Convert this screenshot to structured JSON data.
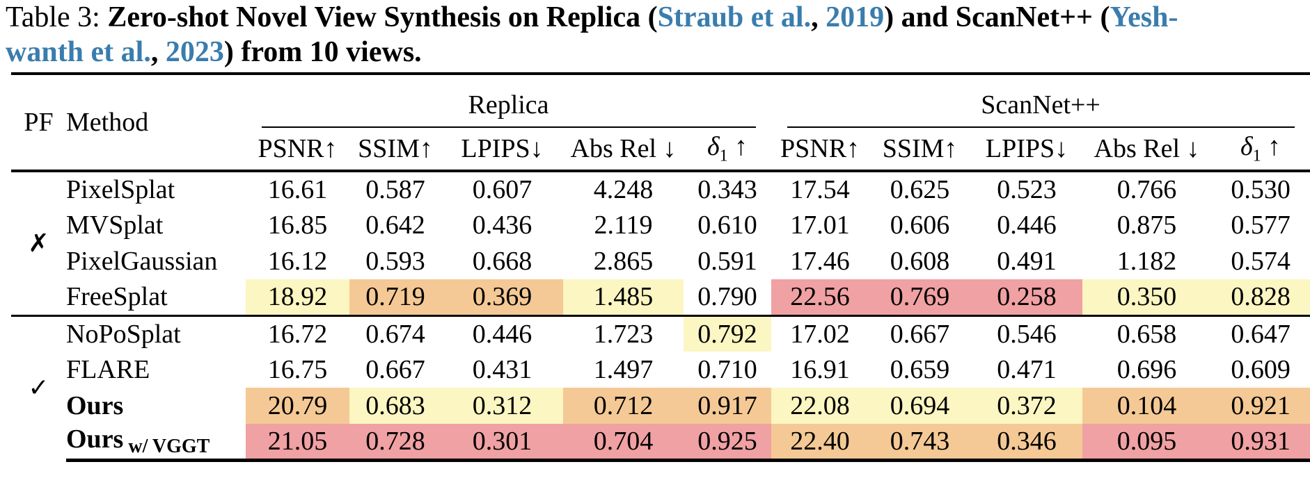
{
  "caption": {
    "segments": [
      {
        "text": "Table 3: ",
        "style": "plain"
      },
      {
        "text": "Zero-shot Novel View Synthesis on Replica (",
        "style": "bold"
      },
      {
        "text": "Straub et al.",
        "style": "link"
      },
      {
        "text": ", ",
        "style": "bold"
      },
      {
        "text": "2019",
        "style": "link"
      },
      {
        "text": ") and ScanNet++ (",
        "style": "bold"
      },
      {
        "text": "Yesh-",
        "style": "link"
      },
      {
        "text": "wanth et al.",
        "style": "link"
      },
      {
        "text": ", ",
        "style": "bold"
      },
      {
        "text": "2023",
        "style": "link"
      },
      {
        "text": ") from 10 views.",
        "style": "bold"
      }
    ]
  },
  "colors": {
    "citation_blue": "#3a7dad",
    "highlight_yellow": "#fbf6c2",
    "highlight_orange": "#f4c995",
    "highlight_red": "#f0a1a3"
  },
  "table": {
    "pf_header": "PF",
    "method_header": "Method",
    "group_headers": [
      "Replica",
      "ScanNet++"
    ],
    "metrics": [
      {
        "name": "PSNR",
        "sub": "",
        "arrow": "↑",
        "space": false,
        "italic": false,
        "arrow_name": "up-arrow-icon"
      },
      {
        "name": "SSIM",
        "sub": "",
        "arrow": "↑",
        "space": false,
        "italic": false,
        "arrow_name": "up-arrow-icon"
      },
      {
        "name": "LPIPS",
        "sub": "",
        "arrow": "↓",
        "space": false,
        "italic": false,
        "arrow_name": "down-arrow-icon"
      },
      {
        "name": "Abs Rel",
        "sub": "",
        "arrow": "↓",
        "space": true,
        "italic": false,
        "arrow_name": "down-arrow-icon"
      },
      {
        "name": "δ",
        "sub": "1",
        "arrow": "↑",
        "space": true,
        "italic": true,
        "arrow_name": "up-arrow-icon"
      }
    ],
    "pf_marks": [
      {
        "glyph": "✗",
        "icon": "x-mark-icon"
      },
      {
        "glyph": "✓",
        "icon": "check-mark-icon"
      }
    ],
    "rows": [
      {
        "method": "PixelSplat",
        "suffix": "",
        "bold": false,
        "values": [
          "16.61",
          "0.587",
          "0.607",
          "4.248",
          "0.343",
          "17.54",
          "0.625",
          "0.523",
          "0.766",
          "0.530"
        ],
        "hl": [
          null,
          null,
          null,
          null,
          null,
          null,
          null,
          null,
          null,
          null
        ]
      },
      {
        "method": "MVSplat",
        "suffix": "",
        "bold": false,
        "values": [
          "16.85",
          "0.642",
          "0.436",
          "2.119",
          "0.610",
          "17.01",
          "0.606",
          "0.446",
          "0.875",
          "0.577"
        ],
        "hl": [
          null,
          null,
          null,
          null,
          null,
          null,
          null,
          null,
          null,
          null
        ]
      },
      {
        "method": "PixelGaussian",
        "suffix": "",
        "bold": false,
        "values": [
          "16.12",
          "0.593",
          "0.668",
          "2.865",
          "0.591",
          "17.46",
          "0.608",
          "0.491",
          "1.182",
          "0.574"
        ],
        "hl": [
          null,
          null,
          null,
          null,
          null,
          null,
          null,
          null,
          null,
          null
        ]
      },
      {
        "method": "FreeSplat",
        "suffix": "",
        "bold": false,
        "values": [
          "18.92",
          "0.719",
          "0.369",
          "1.485",
          "0.790",
          "22.56",
          "0.769",
          "0.258",
          "0.350",
          "0.828"
        ],
        "hl": [
          "yellow",
          "orange",
          "orange",
          "yellow",
          null,
          "red",
          "red",
          "red",
          "yellow",
          "yellow"
        ]
      },
      {
        "method": "NoPoSplat",
        "suffix": "",
        "bold": false,
        "values": [
          "16.72",
          "0.674",
          "0.446",
          "1.723",
          "0.792",
          "17.02",
          "0.667",
          "0.546",
          "0.658",
          "0.647"
        ],
        "hl": [
          null,
          null,
          null,
          null,
          "yellow",
          null,
          null,
          null,
          null,
          null
        ]
      },
      {
        "method": "FLARE",
        "suffix": "",
        "bold": false,
        "values": [
          "16.75",
          "0.667",
          "0.431",
          "1.497",
          "0.710",
          "16.91",
          "0.659",
          "0.471",
          "0.696",
          "0.609"
        ],
        "hl": [
          null,
          null,
          null,
          null,
          null,
          null,
          null,
          null,
          null,
          null
        ]
      },
      {
        "method": "Ours",
        "suffix": "",
        "bold": true,
        "values": [
          "20.79",
          "0.683",
          "0.312",
          "0.712",
          "0.917",
          "22.08",
          "0.694",
          "0.372",
          "0.104",
          "0.921"
        ],
        "hl": [
          "orange",
          "yellow",
          "yellow",
          "orange",
          "orange",
          "yellow",
          "yellow",
          "yellow",
          "orange",
          "orange"
        ]
      },
      {
        "method": "Ours",
        "suffix": "w/ VGGT",
        "bold": true,
        "values": [
          "21.05",
          "0.728",
          "0.301",
          "0.704",
          "0.925",
          "22.40",
          "0.743",
          "0.346",
          "0.095",
          "0.931"
        ],
        "hl": [
          "red",
          "red",
          "red",
          "red",
          "red",
          "orange",
          "orange",
          "orange",
          "red",
          "red"
        ]
      }
    ]
  }
}
